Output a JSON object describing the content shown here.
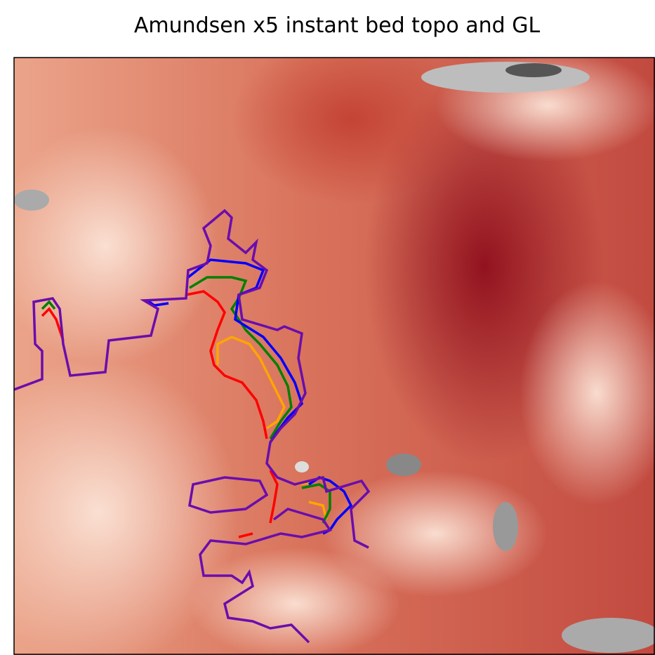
{
  "chart_data": {
    "type": "heatmap",
    "title": "Amundsen x5 instant bed topo and GL",
    "contour_colors": [
      "#6a0dad",
      "#0000ff",
      "#008000",
      "#ffa500",
      "#ff0000"
    ]
  }
}
